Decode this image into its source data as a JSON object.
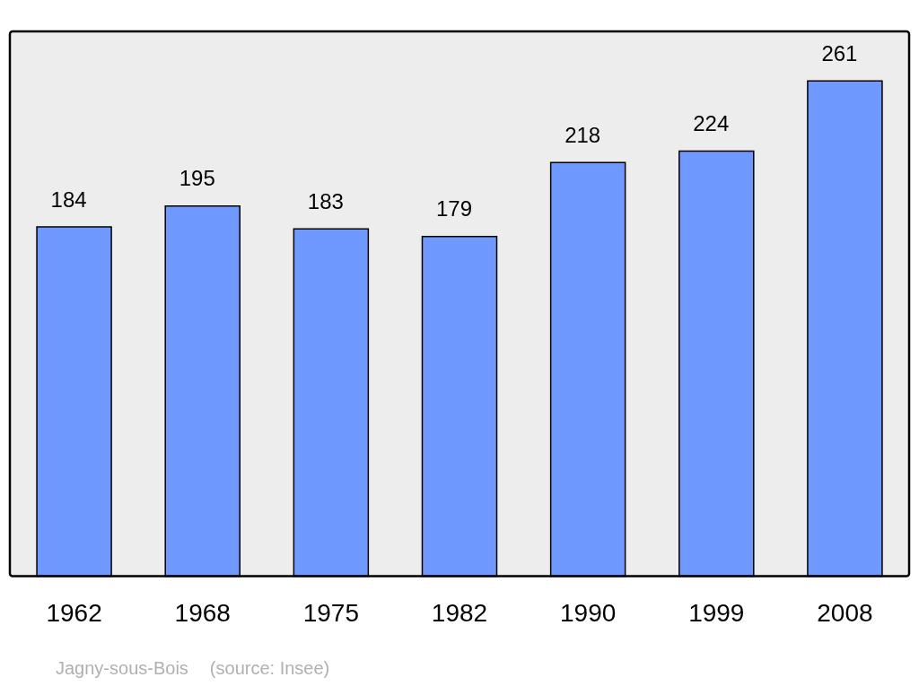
{
  "chart_data": {
    "type": "bar",
    "categories": [
      "1962",
      "1968",
      "1975",
      "1982",
      "1990",
      "1999",
      "2008"
    ],
    "values": [
      184,
      195,
      183,
      179,
      218,
      224,
      261
    ],
    "color": "#7099ff",
    "data_labels": true,
    "annotations": [
      "Jagny-sous-Bois",
      "(source: Insee)"
    ]
  }
}
